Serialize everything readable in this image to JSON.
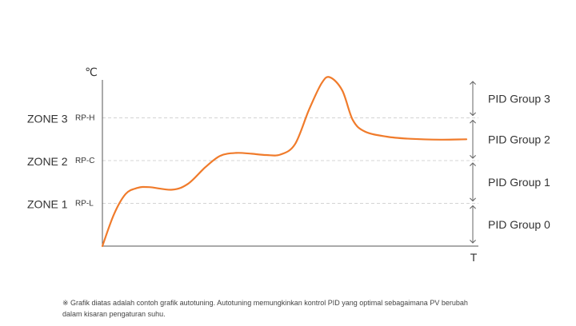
{
  "chart_data": {
    "type": "line",
    "title": "",
    "y_unit_label": "℃",
    "x_axis_label": "T",
    "zones": [
      {
        "zone": "ZONE 1",
        "rp": "RP-L",
        "level": 1
      },
      {
        "zone": "ZONE 2",
        "rp": "RP-C",
        "level": 2
      },
      {
        "zone": "ZONE 3",
        "rp": "RP-H",
        "level": 3
      }
    ],
    "pid_groups": [
      {
        "label": "PID Group 0",
        "from": 0,
        "to": 1
      },
      {
        "label": "PID Group 1",
        "from": 1,
        "to": 2
      },
      {
        "label": "PID Group 2",
        "from": 2,
        "to": 3
      },
      {
        "label": "PID Group 3",
        "from": 3,
        "to": 4
      }
    ],
    "ylim": [
      0,
      4.1
    ],
    "xlim": [
      0,
      100
    ],
    "series": [
      {
        "name": "PV",
        "color": "#f07b2b",
        "points": [
          [
            0,
            0
          ],
          [
            3.1,
            0.75
          ],
          [
            6.2,
            1.22
          ],
          [
            9.3,
            1.36
          ],
          [
            12.4,
            1.38
          ],
          [
            18.6,
            1.32
          ],
          [
            22.8,
            1.46
          ],
          [
            27.3,
            1.84
          ],
          [
            31.3,
            2.11
          ],
          [
            35.5,
            2.18
          ],
          [
            39.7,
            2.16
          ],
          [
            43.6,
            2.13
          ],
          [
            47.3,
            2.14
          ],
          [
            51.2,
            2.38
          ],
          [
            54.9,
            3.18
          ],
          [
            58.3,
            3.81
          ],
          [
            60.5,
            3.95
          ],
          [
            63.8,
            3.64
          ],
          [
            66.6,
            2.95
          ],
          [
            69.8,
            2.68
          ],
          [
            75.6,
            2.56
          ],
          [
            81.9,
            2.51
          ],
          [
            90,
            2.49
          ],
          [
            96.8,
            2.5
          ]
        ]
      }
    ]
  },
  "footnote": {
    "line1": "※ Grafik diatas adalah contoh grafik autotuning. Autotuning memungkinkan kontrol PID yang optimal sebagaimana PV berubah",
    "line2": "dalam kisaran pengaturan suhu."
  },
  "colors": {
    "curve": "#f07b2b",
    "axis": "#555555",
    "gridline": "#d4d4d4",
    "text": "#333333",
    "arrow": "#666666"
  }
}
